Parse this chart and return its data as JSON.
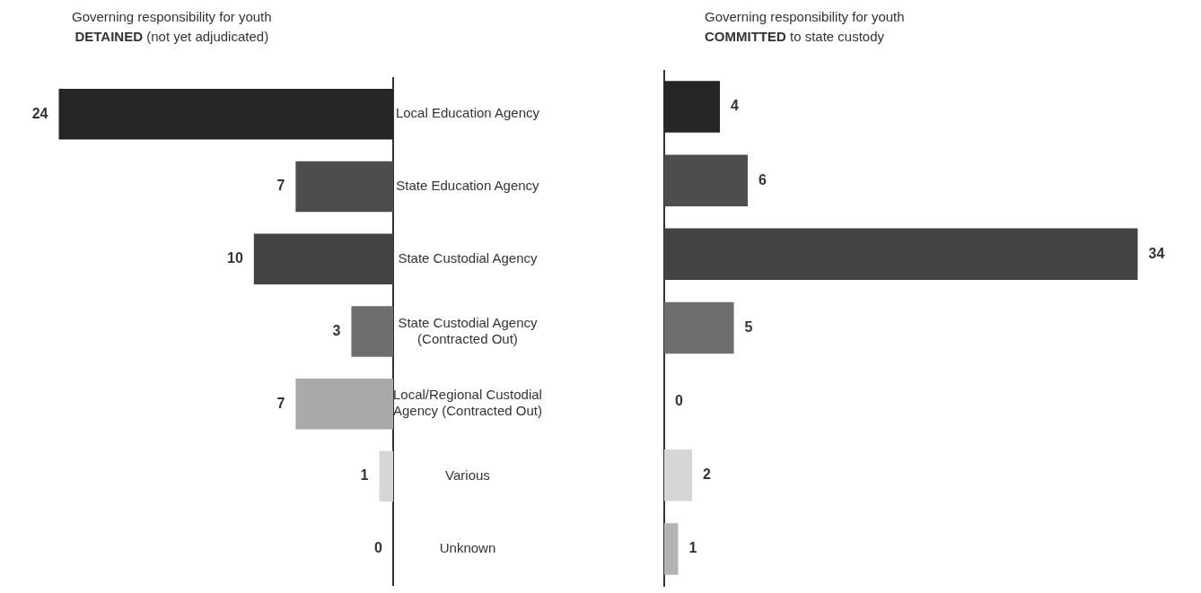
{
  "chart_data": [
    {
      "type": "bar",
      "orientation": "horizontal",
      "title": "Governing responsibility for youth",
      "subtitle": "DETAINED (not yet adjudicated)",
      "categories": [
        "Local Education Agency",
        "State Education Agency",
        "State Custodial Agency",
        "State Custodial Agency (Contracted Out)",
        "Local/Regional Custodial Agency (Contracted Out)",
        "Various",
        "Unknown"
      ],
      "values": [
        24,
        7,
        10,
        3,
        7,
        1,
        0
      ],
      "colors": [
        "#262626",
        "#4d4d4d",
        "#434343",
        "#6e6e6e",
        "#a9a9a9",
        "#d6d6d6",
        "#b3b3b3"
      ],
      "data_labels": true,
      "tick_labels": "y"
    },
    {
      "type": "bar",
      "orientation": "horizontal",
      "title": "Governing responsibility for youth",
      "subtitle": "COMMITTED to state custody",
      "categories": [
        null,
        null,
        null,
        null,
        null,
        null,
        null
      ],
      "values": [
        4,
        6,
        34,
        5,
        0,
        2,
        1
      ],
      "colors": [
        "#262626",
        "#4d4d4d",
        "#434343",
        "#6e6e6e",
        "#a9a9a9",
        "#d6d6d6",
        "#b3b3b3"
      ],
      "data_labels": true,
      "tick_labels": false
    }
  ]
}
